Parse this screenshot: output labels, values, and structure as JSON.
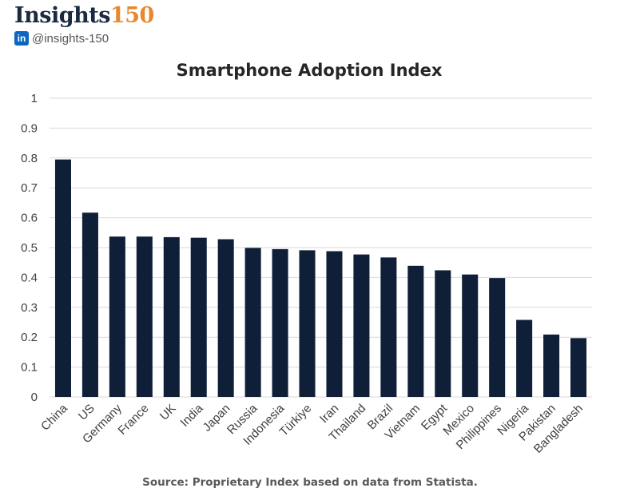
{
  "brand": {
    "logo_word": "Insights",
    "logo_number": "150",
    "linkedin_icon_label": "in",
    "handle": "@insights-150",
    "icon": "linkedin-icon",
    "colors": {
      "logo_text": "#1b2a41",
      "logo_accent": "#e8872d",
      "linkedin": "#0a66c2"
    }
  },
  "chart_data": {
    "type": "bar",
    "title": "Smartphone Adoption Index",
    "xlabel": "",
    "ylabel": "",
    "ylim": [
      0,
      1
    ],
    "yticks": [
      "0",
      "0.1",
      "0.2",
      "0.3",
      "0.4",
      "0.5",
      "0.6",
      "0.7",
      "0.8",
      "0.9",
      "1"
    ],
    "grid": true,
    "categories": [
      "China",
      "US",
      "Germany",
      "France",
      "UK",
      "India",
      "Japan",
      "Russia",
      "Indonesia",
      "Türkiye",
      "Iran",
      "Thailand",
      "Brazil",
      "Vietnam",
      "Egypt",
      "Mexico",
      "Philippines",
      "Nigeria",
      "Pakistan",
      "Bangladesh"
    ],
    "values": [
      0.795,
      0.617,
      0.537,
      0.537,
      0.535,
      0.533,
      0.528,
      0.499,
      0.495,
      0.491,
      0.488,
      0.477,
      0.467,
      0.439,
      0.424,
      0.41,
      0.398,
      0.258,
      0.209,
      0.197
    ],
    "bar_color": "#0f1f38"
  },
  "source": "Source: Proprietary Index based on data from Statista."
}
